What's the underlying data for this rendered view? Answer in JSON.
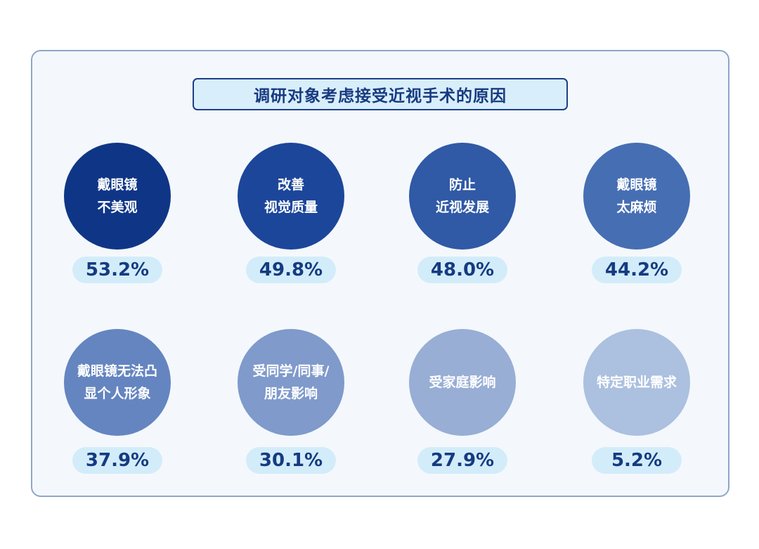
{
  "title": "调研对象考虑接受近视手术的原因",
  "chart_data": {
    "type": "table",
    "title": "调研对象考虑接受近视手术的原因",
    "items": [
      {
        "label_lines": [
          "戴眼镜",
          "不美观"
        ],
        "value": 53.2,
        "display": "53.2%",
        "color": "#0f3686"
      },
      {
        "label_lines": [
          "改善",
          "视觉质量"
        ],
        "value": 49.8,
        "display": "49.8%",
        "color": "#1c469a"
      },
      {
        "label_lines": [
          "防止",
          "近视发展"
        ],
        "value": 48.0,
        "display": "48.0%",
        "color": "#3059a6"
      },
      {
        "label_lines": [
          "戴眼镜",
          "太麻烦"
        ],
        "value": 44.2,
        "display": "44.2%",
        "color": "#466eb3"
      },
      {
        "label_lines": [
          "戴眼镜无法凸",
          "显个人形象"
        ],
        "value": 37.9,
        "display": "37.9%",
        "color": "#6585c0"
      },
      {
        "label_lines": [
          "受同学/同事/",
          "朋友影响"
        ],
        "value": 30.1,
        "display": "30.1%",
        "color": "#7f9acb"
      },
      {
        "label_lines": [
          "受家庭影响"
        ],
        "value": 27.9,
        "display": "27.9%",
        "color": "#98aed5"
      },
      {
        "label_lines": [
          "特定职业需求"
        ],
        "value": 5.2,
        "display": "5.2%",
        "color": "#acc0df"
      }
    ]
  }
}
